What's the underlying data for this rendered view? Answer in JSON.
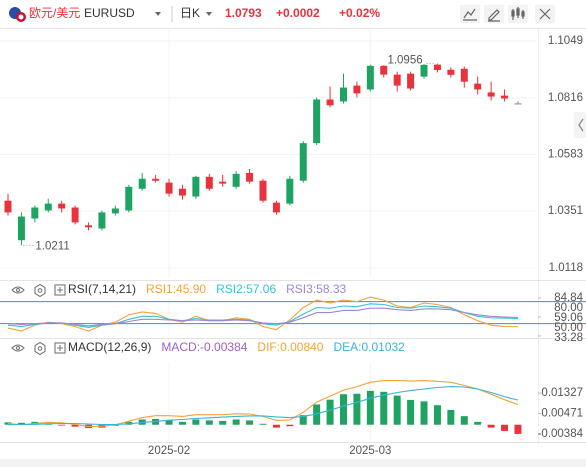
{
  "header": {
    "name": "欧元/美元",
    "symbol": "EURUSD",
    "period": "日K",
    "price": 1.0793,
    "change": "+0.0002",
    "change_pct": "+0.02%"
  },
  "chart_data": [
    {
      "type": "candlestick",
      "categories": [
        null,
        null,
        null,
        null,
        null,
        null,
        null,
        null,
        null,
        null,
        null,
        null,
        "2025-02",
        null,
        null,
        null,
        null,
        null,
        null,
        null,
        null,
        null,
        null,
        null,
        null,
        null,
        null,
        "2025-03",
        null,
        null,
        null,
        null,
        null,
        null,
        null,
        null,
        null,
        null,
        null
      ],
      "open": [
        1.0394,
        1.0232,
        1.0321,
        1.0354,
        1.0382,
        1.0366,
        1.0293,
        1.028,
        1.0342,
        1.0354,
        1.0443,
        1.0484,
        1.0468,
        1.0443,
        1.0411,
        1.0492,
        1.0472,
        1.0451,
        1.0508,
        1.0476,
        1.0386,
        1.0382,
        1.0476,
        1.063,
        1.0809,
        1.0801,
        1.0866,
        1.085,
        1.0947,
        1.0911,
        1.0915,
        1.0903,
        1.0952,
        1.0931,
        1.0935,
        1.0874,
        1.0838,
        1.0825,
        1.0793
      ],
      "high": [
        1.0423,
        1.0346,
        1.0374,
        1.0402,
        1.0394,
        1.0374,
        1.0305,
        1.0354,
        1.0374,
        1.0459,
        1.0508,
        1.05,
        1.0484,
        1.0459,
        1.0496,
        1.0504,
        1.05,
        1.0516,
        1.0524,
        1.0484,
        1.0394,
        1.0496,
        1.0638,
        1.0817,
        1.0862,
        1.0915,
        1.0882,
        1.0952,
        1.095,
        1.0923,
        1.0923,
        1.0954,
        1.0956,
        1.094,
        1.0944,
        1.0903,
        1.0882,
        1.085,
        1.0801
      ],
      "low": [
        1.0333,
        1.0211,
        1.0305,
        1.0346,
        1.0346,
        1.0297,
        1.0272,
        1.0272,
        1.0333,
        1.0346,
        1.0435,
        1.0468,
        1.0411,
        1.0398,
        1.0402,
        1.0435,
        1.0451,
        1.0443,
        1.0464,
        1.0386,
        1.0337,
        1.0374,
        1.0468,
        1.0622,
        1.0777,
        1.0793,
        1.0817,
        1.0842,
        1.0899,
        1.0842,
        1.0846,
        1.0894,
        1.092,
        1.0899,
        1.0858,
        1.0829,
        1.0805,
        1.0801,
        1.0789
      ],
      "close": [
        1.0346,
        1.0329,
        1.0366,
        1.0382,
        1.0362,
        1.0305,
        1.0285,
        1.0346,
        1.0362,
        1.0451,
        1.0484,
        1.0476,
        1.0423,
        1.0415,
        1.0492,
        1.0443,
        1.0464,
        1.0504,
        1.0472,
        1.0394,
        1.0346,
        1.0484,
        1.063,
        1.0809,
        1.0785,
        1.0858,
        1.0834,
        1.0947,
        1.0911,
        1.0866,
        1.0854,
        1.0951,
        1.093,
        1.091,
        1.0882,
        1.085,
        1.0821,
        1.0813,
        1.0793
      ],
      "up_color": "#1ea362",
      "down_color": "#e8323c",
      "flat_color": "#888888",
      "annotations": [
        "1.0956",
        "1.0211"
      ],
      "ylim": [
        1.0077,
        1.1094
      ],
      "yticks": [
        1.1049,
        1.0816,
        1.0583,
        1.0351,
        1.0118
      ],
      "grid": true
    },
    {
      "type": "line",
      "title": "RSI(7,14,21)",
      "series": [
        {
          "name": "RSI1:45.90",
          "color": "#f2a33a",
          "values": [
            44,
            40,
            48,
            52,
            50,
            46,
            40,
            48,
            52,
            62,
            66,
            64,
            56,
            52,
            60,
            54,
            54,
            58,
            56,
            46,
            42,
            55,
            72,
            82,
            78,
            82,
            80,
            86,
            82,
            74,
            72,
            78,
            76,
            72,
            62,
            54,
            48,
            46,
            45.9
          ]
        },
        {
          "name": "RSI2:57.06",
          "color": "#36c4d0",
          "values": [
            48,
            46,
            49,
            51,
            51,
            48,
            45,
            48,
            50,
            56,
            60,
            60,
            56,
            54,
            57,
            55,
            55,
            56,
            55,
            50,
            48,
            53,
            63,
            72,
            71,
            74,
            73,
            77,
            76,
            72,
            71,
            74,
            73,
            71,
            65,
            60,
            58,
            57.5,
            57.06
          ]
        },
        {
          "name": "RSI3:58.33",
          "color": "#9b86d6",
          "values": [
            50,
            49,
            50,
            51,
            51,
            49,
            47,
            49,
            50,
            53,
            56,
            56,
            55,
            54,
            55,
            54,
            54,
            55,
            54,
            51,
            50,
            52,
            58,
            65,
            65,
            68,
            68,
            71,
            71,
            69,
            68,
            70,
            70,
            69,
            65,
            62,
            60,
            59,
            58.33
          ]
        }
      ],
      "reference_lines": [
        {
          "value": 80,
          "label": "80.00"
        },
        {
          "value": 50,
          "label": "50.00"
        }
      ],
      "reference_color": "#3a8fd9",
      "ylim": [
        33.28,
        84.84
      ],
      "yticks": [
        84.84,
        59.06,
        33.28
      ]
    },
    {
      "type": "macd",
      "title": "MACD(12,26,9)",
      "series": [
        {
          "name": "MACD:-0.00384",
          "color": "#a05fc4",
          "values": [
            0.001,
            0.0008,
            0.0012,
            0.0006,
            -0.0002,
            -0.0008,
            -0.0014,
            -0.0012,
            -0.0004,
            0.0012,
            0.0022,
            0.0024,
            0.0018,
            0.0012,
            0.0022,
            0.0018,
            0.0016,
            0.0022,
            0.0018,
            0.0004,
            -0.0012,
            -0.0006,
            0.004,
            0.0085,
            0.0105,
            0.0128,
            0.013,
            0.0142,
            0.0138,
            0.0122,
            0.0104,
            0.0098,
            0.0082,
            0.0062,
            0.0036,
            0.0012,
            -0.0012,
            -0.0026,
            -0.00384
          ]
        },
        {
          "name": "DIF:0.00840",
          "color": "#f2a33a",
          "values": [
            0.0005,
            0,
            0.0005,
            0.001,
            0.0008,
            0.0002,
            -0.0008,
            -0.0006,
            0,
            0.0015,
            0.003,
            0.0038,
            0.0038,
            0.0035,
            0.0042,
            0.0042,
            0.0042,
            0.0046,
            0.0045,
            0.0035,
            0.0018,
            0.002,
            0.0052,
            0.0095,
            0.012,
            0.0145,
            0.016,
            0.0178,
            0.0185,
            0.0186,
            0.0183,
            0.0185,
            0.0182,
            0.0178,
            0.0165,
            0.015,
            0.0128,
            0.0105,
            0.0084
          ]
        },
        {
          "name": "DEA:0.01032",
          "color": "#36b4d8",
          "values": [
            0,
            0.0001,
            0.0002,
            0.0004,
            0.0005,
            0.0005,
            0.0003,
            0.0001,
            0.0001,
            0.0004,
            0.0009,
            0.0014,
            0.0019,
            0.0022,
            0.0026,
            0.0029,
            0.0032,
            0.0035,
            0.0037,
            0.0037,
            0.0033,
            0.003,
            0.0034,
            0.0046,
            0.0061,
            0.0078,
            0.0094,
            0.0111,
            0.0124,
            0.0135,
            0.0143,
            0.015,
            0.0156,
            0.016,
            0.0158,
            0.015,
            0.0135,
            0.0118,
            0.01032
          ]
        }
      ],
      "up_color": "#1ea362",
      "down_color": "#e8323c",
      "ylim": [
        -0.0064,
        0.0263
      ],
      "yticks": [
        0.01327,
        0.00471,
        -0.00384
      ]
    }
  ]
}
